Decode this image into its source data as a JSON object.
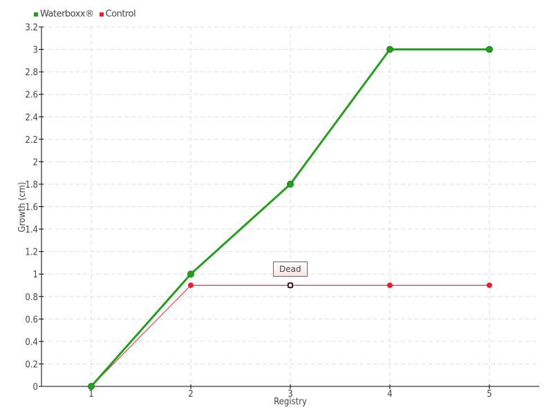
{
  "chart_data": {
    "type": "line",
    "xlabel": "Registry",
    "ylabel": "Growth (cm)",
    "categories": [
      "1",
      "2",
      "3",
      "4",
      "5"
    ],
    "x": [
      1,
      2,
      3,
      4,
      5
    ],
    "xlim": [
      0.5,
      5.5
    ],
    "ylim": [
      0,
      3.2
    ],
    "yticks": [
      "0",
      "0.2",
      "0.4",
      "0.6",
      "0.8",
      "1",
      "1.2",
      "1.4",
      "1.6",
      "1.8",
      "2",
      "2.2",
      "2.4",
      "2.6",
      "2.8",
      "3",
      "3.2"
    ],
    "grid": true,
    "legend": "top-left",
    "series": [
      {
        "name": "Waterboxx®",
        "color": "#22a01c",
        "values": [
          0,
          1,
          1.8,
          3,
          3
        ]
      },
      {
        "name": "Control",
        "color": "#ee1c2c",
        "values": [
          0,
          0.9,
          0.9,
          0.9,
          0.9
        ]
      }
    ],
    "annotations": [
      {
        "series": "Control",
        "x": 3,
        "y": 0.9,
        "text": "Dead"
      }
    ]
  }
}
